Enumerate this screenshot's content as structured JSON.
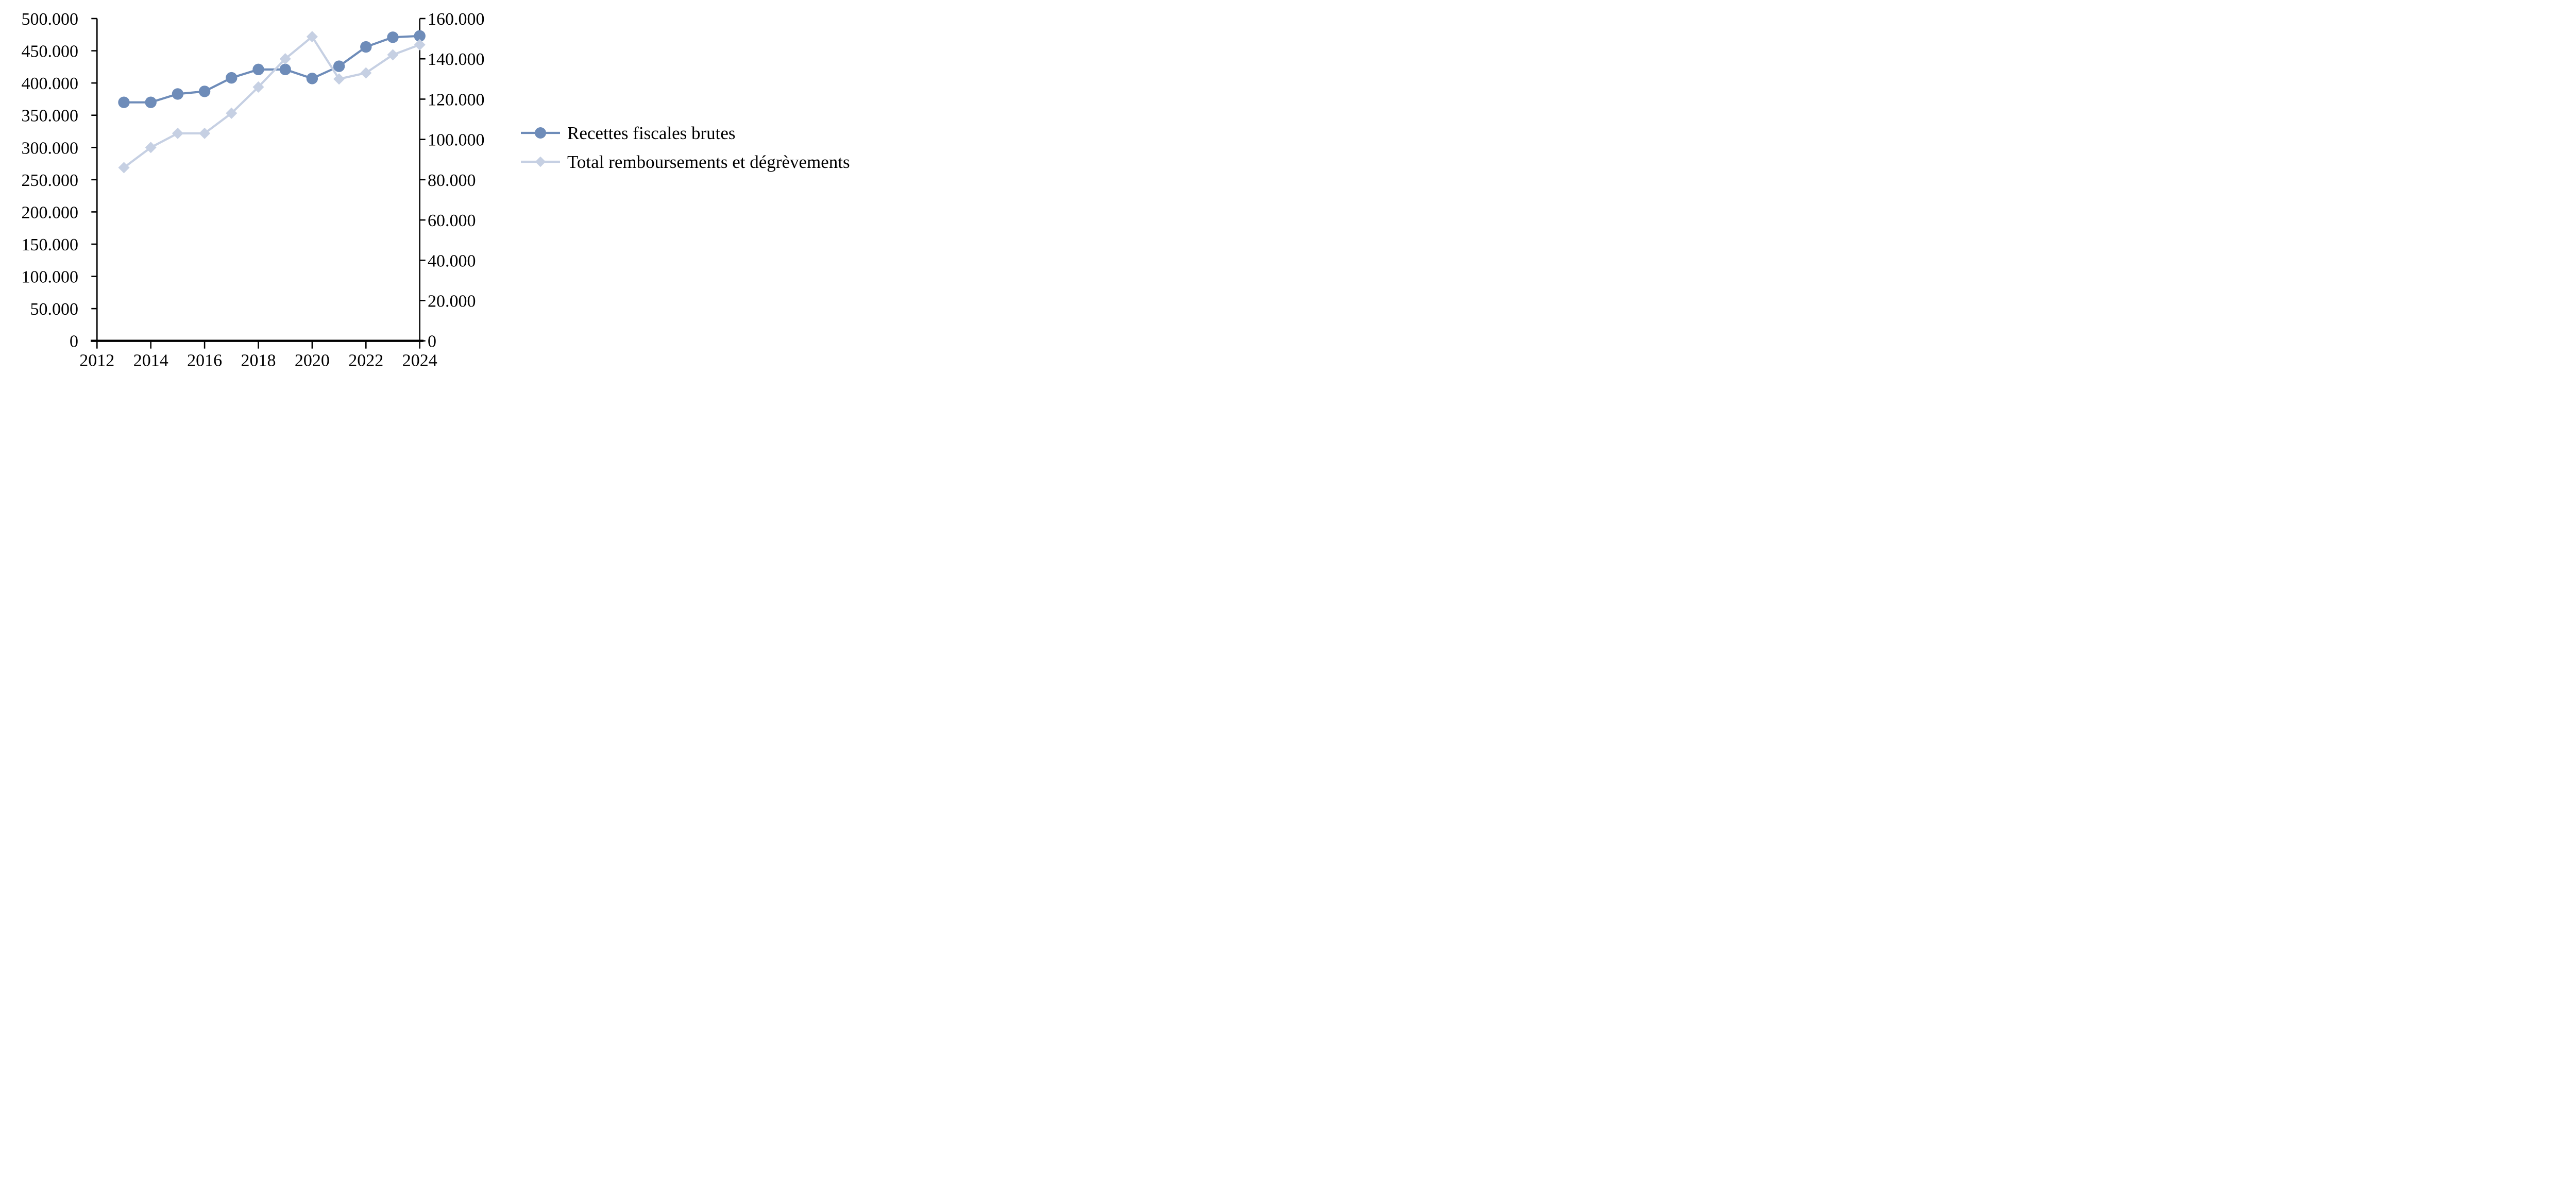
{
  "chart_data": {
    "type": "line",
    "title": "",
    "grid": "off",
    "legend_position": "right",
    "axis_color": "#000000",
    "background_color": "#ffffff",
    "number_format": "dot-thousands",
    "x": [
      2013,
      2014,
      2015,
      2016,
      2017,
      2018,
      2019,
      2020,
      2021,
      2022,
      2023,
      2024
    ],
    "series": [
      {
        "name": "Recettes fiscales brutes",
        "axis": "left",
        "marker": "circle",
        "color": "#6E8CB9",
        "values": [
          370000,
          370000,
          383000,
          387000,
          408000,
          421000,
          421000,
          407000,
          426000,
          456000,
          471000,
          473000
        ]
      },
      {
        "name": "Total remboursements et dégrèvements",
        "axis": "right",
        "marker": "diamond",
        "color": "#C6D0E3",
        "values": [
          86000,
          96000,
          103000,
          103000,
          113000,
          126000,
          140000,
          151000,
          130000,
          133000,
          142000,
          147000
        ]
      }
    ],
    "left_axis": {
      "min": 0,
      "max": 500000,
      "step": 50000,
      "tick_labels": [
        "500.000",
        "450.000",
        "400.000",
        "350.000",
        "300.000",
        "250.000",
        "200.000",
        "150.000",
        "100.000",
        "50.000",
        "0"
      ]
    },
    "right_axis": {
      "min": 0,
      "max": 160000,
      "step": 20000,
      "tick_labels": [
        "160.000",
        "140.000",
        "120.000",
        "100.000",
        "80.000",
        "60.000",
        "40.000",
        "20.000",
        "0"
      ]
    },
    "x_axis": {
      "min": 2012,
      "max": 2024,
      "step": 2,
      "tick_labels": [
        "2012",
        "2014",
        "2016",
        "2018",
        "2020",
        "2022",
        "2024"
      ]
    }
  }
}
